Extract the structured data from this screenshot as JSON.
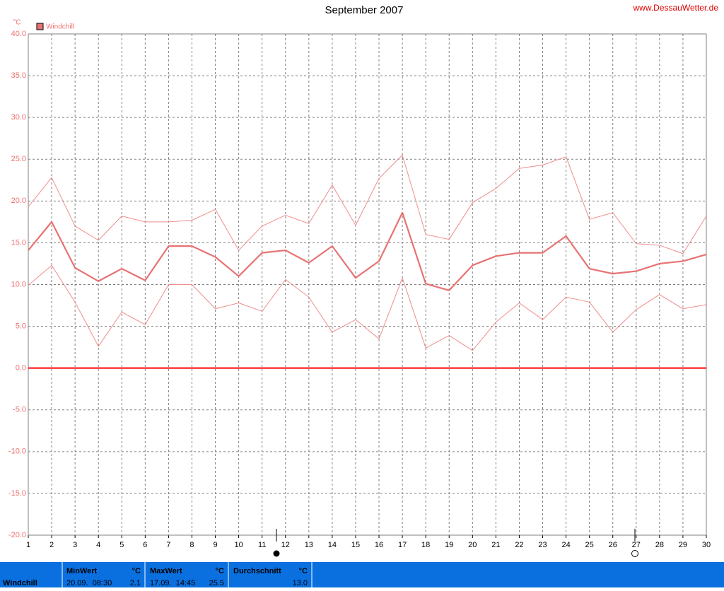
{
  "chart_data": {
    "type": "line",
    "title": "September 2007",
    "source": "www.DessauWetter.de",
    "unit": "°C",
    "x": [
      1,
      2,
      3,
      4,
      5,
      6,
      7,
      8,
      9,
      10,
      11,
      12,
      13,
      14,
      15,
      16,
      17,
      18,
      19,
      20,
      21,
      22,
      23,
      24,
      25,
      26,
      27,
      28,
      29,
      30
    ],
    "xlim": [
      1,
      30
    ],
    "xticks": [
      1,
      2,
      3,
      4,
      5,
      6,
      7,
      8,
      9,
      10,
      11,
      12,
      13,
      14,
      15,
      16,
      17,
      18,
      19,
      20,
      21,
      22,
      23,
      24,
      25,
      26,
      27,
      28,
      29,
      30
    ],
    "ylim": [
      -20,
      40
    ],
    "yticks": [
      {
        "value": 40,
        "label": "40.0"
      },
      {
        "value": 35,
        "label": "35.0"
      },
      {
        "value": 30,
        "label": "30.0"
      },
      {
        "value": 25,
        "label": "25.0"
      },
      {
        "value": 20,
        "label": "20.0"
      },
      {
        "value": 15,
        "label": "15.0"
      },
      {
        "value": 10,
        "label": "10.0"
      },
      {
        "value": 5,
        "label": "5.0"
      },
      {
        "value": 0,
        "label": "0.0"
      },
      {
        "value": -5,
        "label": "-5.0"
      },
      {
        "value": -10,
        "label": "-10.0"
      },
      {
        "value": -15,
        "label": "-15.0"
      },
      {
        "value": -20,
        "label": "-20.0"
      }
    ],
    "grid": true,
    "zero_line_color": "#ff0000",
    "legend": "top-left",
    "series": [
      {
        "name": "Windchill",
        "color": "#e87272",
        "line_width": 2.2,
        "values": [
          14.1,
          17.5,
          12.0,
          10.4,
          11.9,
          10.5,
          14.6,
          14.6,
          13.3,
          11.0,
          13.8,
          14.1,
          12.6,
          14.6,
          10.8,
          12.8,
          18.6,
          10.1,
          9.3,
          12.3,
          13.4,
          13.8,
          13.8,
          15.8,
          11.9,
          11.3,
          11.6,
          12.5,
          12.8,
          13.6
        ]
      },
      {
        "color": "#f08c8c",
        "line_width": 1,
        "values": [
          19.3,
          22.8,
          17.0,
          15.3,
          18.2,
          17.5,
          17.5,
          17.7,
          19.0,
          14.1,
          17.0,
          18.3,
          17.3,
          21.9,
          17.1,
          22.7,
          25.5,
          16.0,
          15.4,
          19.8,
          21.5,
          23.9,
          24.3,
          25.3,
          17.8,
          18.6,
          14.9,
          14.7,
          13.7,
          18.2
        ]
      },
      {
        "color": "#f08c8c",
        "line_width": 1,
        "values": [
          9.9,
          12.3,
          7.9,
          2.6,
          6.7,
          5.2,
          10.0,
          10.0,
          7.1,
          7.8,
          6.8,
          10.6,
          8.5,
          4.3,
          5.8,
          3.5,
          10.8,
          2.4,
          3.9,
          2.1,
          5.5,
          7.8,
          5.8,
          8.5,
          7.9,
          4.3,
          7.0,
          8.8,
          7.1,
          7.6
        ]
      }
    ]
  },
  "stats": {
    "label": "Windchill",
    "cells": [
      {
        "title": "MinWert",
        "unit": "°C",
        "when": "20.09.  08:30",
        "value": "2.1"
      },
      {
        "title": "MaxWert",
        "unit": "°C",
        "when": "17.09.  14:45",
        "value": "25.5"
      },
      {
        "title": "Durchschnitt",
        "unit": "°C",
        "value": "13.0"
      }
    ]
  }
}
